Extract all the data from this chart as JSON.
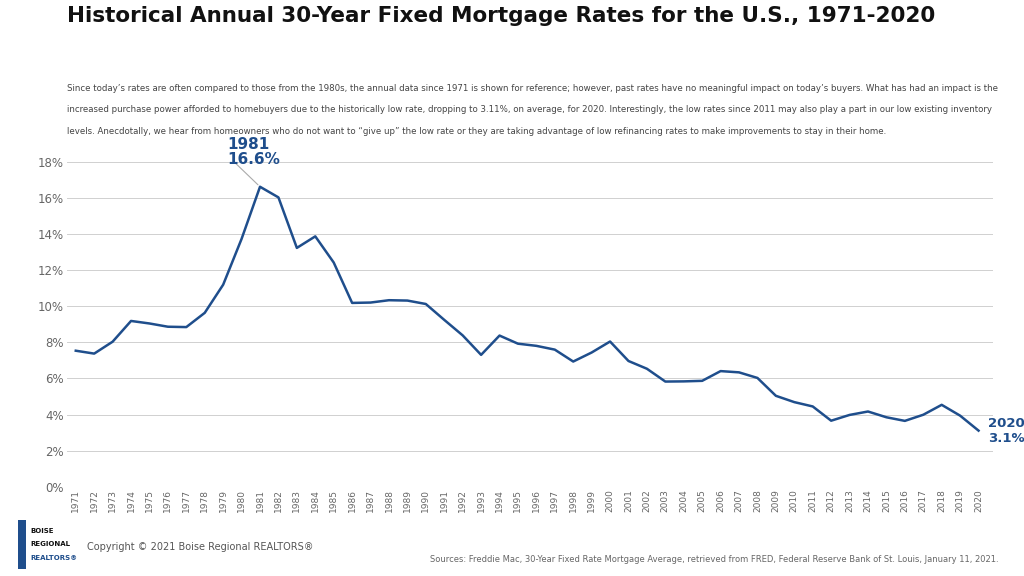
{
  "title": "Historical Annual 30-Year Fixed Mortgage Rates for the U.S., 1971-2020",
  "subtitle": "Since today’s rates are often compared to those from the 1980s, the annual data since 1971 is shown for reference; however, past rates have no meaningful impact on today’s buyers. What has had an impact is the increased purchase power afforded to homebuyers due to the historically low rate, dropping to 3.11%, on average, for 2020. Interestingly, the low rates since 2011 may also play a part in our low existing inventory levels. Anecdotally, we hear from homeowners who do not want to “give up” the low rate or they are taking advantage of low refinancing rates to make improvements to stay in their home.",
  "copyright": "Copyright © 2021 Boise Regional REALTORS®",
  "source": "Sources: Freddie Mac, 30-Year Fixed Rate Mortgage Average, retrieved from FRED, Federal Reserve Bank of St. Louis, January 11, 2021.",
  "line_color": "#1f4e8c",
  "annotation_color": "#1f4e8c",
  "background_color": "#ffffff",
  "years": [
    1971,
    1972,
    1973,
    1974,
    1975,
    1976,
    1977,
    1978,
    1979,
    1980,
    1981,
    1982,
    1983,
    1984,
    1985,
    1986,
    1987,
    1988,
    1989,
    1990,
    1991,
    1992,
    1993,
    1994,
    1995,
    1996,
    1997,
    1998,
    1999,
    2000,
    2001,
    2002,
    2003,
    2004,
    2005,
    2006,
    2007,
    2008,
    2009,
    2010,
    2011,
    2012,
    2013,
    2014,
    2015,
    2016,
    2017,
    2018,
    2019,
    2020
  ],
  "rates": [
    7.54,
    7.38,
    8.04,
    9.19,
    9.05,
    8.87,
    8.85,
    9.64,
    11.2,
    13.74,
    16.63,
    16.04,
    13.24,
    13.88,
    12.43,
    10.19,
    10.21,
    10.34,
    10.32,
    10.13,
    9.25,
    8.39,
    7.31,
    8.38,
    7.93,
    7.81,
    7.6,
    6.94,
    7.44,
    8.05,
    6.97,
    6.54,
    5.83,
    5.84,
    5.87,
    6.41,
    6.34,
    6.03,
    5.04,
    4.69,
    4.45,
    3.66,
    3.98,
    4.17,
    3.85,
    3.65,
    3.99,
    4.54,
    3.94,
    3.11
  ],
  "peak_year": "1981",
  "peak_rate": "16.6%",
  "end_year": "2020",
  "end_rate": "3.1%",
  "ylim": [
    0,
    19
  ],
  "yticks": [
    0,
    2,
    4,
    6,
    8,
    10,
    12,
    14,
    16,
    18
  ],
  "ytick_labels": [
    "0%",
    "2%",
    "4%",
    "6%",
    "8%",
    "10%",
    "12%",
    "14%",
    "16%",
    "18%"
  ],
  "grid_color": "#d0d0d0",
  "tick_color": "#666666"
}
